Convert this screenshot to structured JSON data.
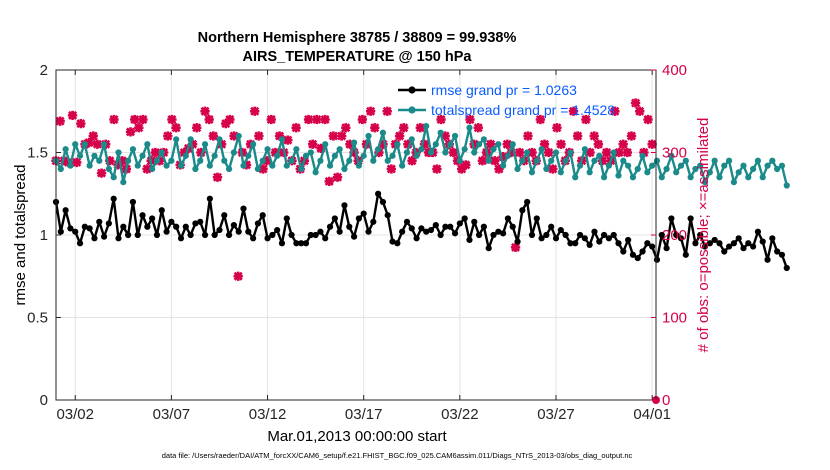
{
  "chart_data": {
    "type": "line",
    "title": "Northern Hemisphere 38785 / 38809 = 99.938%",
    "subtitle": "AIRS_TEMPERATURE @ 150 hPa",
    "xlabel": "Mar.01,2013 00:00:00 start",
    "ylabel": "rmse and totalspread",
    "ylabel_right": "# of obs: o=possible; ×=assimilated",
    "xlim": [
      0,
      31.2
    ],
    "ylim": [
      0,
      2
    ],
    "ylim_right": [
      0,
      400
    ],
    "x_tick_values": [
      1,
      6,
      11,
      16,
      21,
      26,
      31
    ],
    "x_tick_labels": [
      "03/02",
      "03/07",
      "03/12",
      "03/17",
      "03/22",
      "03/27",
      "04/01"
    ],
    "y_tick_labels": [
      "0",
      "0.5",
      "1",
      "1.5",
      "2"
    ],
    "y_right_tick_labels": [
      "0",
      "100",
      "200",
      "300",
      "400"
    ],
    "grid": true,
    "legend_position": "top-right",
    "x_step": 0.25,
    "series": [
      {
        "name": "rmse grand pr = 1.0263",
        "color": "#000000",
        "axis": "left",
        "marker": "dot",
        "values": [
          1.2,
          1.02,
          1.15,
          1.04,
          1.02,
          0.95,
          1.05,
          1.04,
          0.98,
          1.08,
          0.99,
          1.07,
          1.22,
          0.98,
          1.05,
          1.0,
          1.2,
          1.0,
          1.12,
          1.05,
          1.1,
          1.0,
          1.15,
          1.02,
          1.08,
          1.05,
          0.98,
          1.05,
          1.0,
          1.07,
          1.08,
          1.0,
          1.22,
          1.0,
          1.03,
          1.12,
          1.0,
          1.06,
          1.02,
          1.16,
          1.02,
          0.98,
          1.07,
          1.12,
          0.98,
          1.0,
          1.03,
          0.95,
          1.1,
          1.0,
          0.95,
          0.95,
          0.95,
          1.0,
          1.0,
          1.02,
          0.98,
          1.05,
          1.1,
          1.02,
          1.18,
          1.05,
          0.99,
          1.1,
          1.13,
          1.02,
          1.08,
          1.25,
          1.2,
          1.12,
          0.96,
          0.95,
          1.02,
          1.08,
          1.04,
          0.98,
          1.04,
          1.02,
          1.03,
          1.06,
          1.0,
          1.05,
          1.05,
          1.01,
          1.07,
          1.1,
          0.97,
          1.08,
          1.0,
          1.05,
          0.92,
          1.0,
          1.02,
          1.01,
          1.1,
          1.05,
          0.96,
          1.15,
          1.2,
          1.0,
          1.1,
          0.98,
          1.0,
          1.05,
          0.98,
          1.03,
          1.0,
          0.95,
          0.95,
          1.0,
          0.98,
          0.94,
          1.02,
          0.96,
          1.0,
          0.98,
          1.0,
          0.95,
          0.9,
          0.97,
          0.88,
          0.86,
          0.9,
          0.95,
          0.93,
          0.85,
          1.0,
          0.92,
          1.1,
          1.0,
          0.98,
          0.88,
          1.1,
          0.95,
          1.0,
          0.93,
          0.95,
          0.97,
          0.95,
          0.9,
          0.93,
          0.95,
          0.98,
          0.92,
          0.95,
          0.93,
          1.02,
          0.96,
          0.85,
          0.98,
          0.9,
          0.88,
          0.8
        ]
      },
      {
        "name": "totalspread grand pr = 1.4528",
        "color": "#1a8a8a",
        "axis": "left",
        "marker": "dot",
        "values": [
          1.45,
          1.4,
          1.52,
          1.42,
          1.55,
          1.48,
          1.55,
          1.42,
          1.48,
          1.45,
          1.55,
          1.4,
          1.35,
          1.5,
          1.32,
          1.45,
          1.52,
          1.42,
          1.48,
          1.55,
          1.4,
          1.45,
          1.5,
          1.42,
          1.45,
          1.58,
          1.42,
          1.48,
          1.58,
          1.4,
          1.45,
          1.55,
          1.42,
          1.48,
          1.58,
          1.45,
          1.4,
          1.5,
          1.6,
          1.42,
          1.48,
          1.55,
          1.4,
          1.45,
          1.52,
          1.42,
          1.48,
          1.58,
          1.42,
          1.45,
          1.52,
          1.4,
          1.48,
          1.5,
          1.38,
          1.45,
          1.55,
          1.42,
          1.48,
          1.52,
          1.4,
          1.45,
          1.56,
          1.42,
          1.48,
          1.6,
          1.45,
          1.52,
          1.62,
          1.45,
          1.48,
          1.55,
          1.42,
          1.5,
          1.58,
          1.48,
          1.52,
          1.66,
          1.5,
          1.55,
          1.62,
          1.5,
          1.55,
          1.6,
          1.45,
          1.52,
          1.65,
          1.5,
          1.55,
          1.58,
          1.45,
          1.52,
          1.55,
          1.42,
          1.48,
          1.55,
          1.4,
          1.45,
          1.5,
          1.38,
          1.45,
          1.52,
          1.4,
          1.45,
          1.5,
          1.38,
          1.45,
          1.5,
          1.35,
          1.42,
          1.52,
          1.38,
          1.45,
          1.48,
          1.35,
          1.42,
          1.5,
          1.36,
          1.45,
          1.42,
          1.35,
          1.4,
          1.48,
          1.38,
          1.42,
          1.45,
          1.35,
          1.4,
          1.48,
          1.38,
          1.42,
          1.45,
          1.35,
          1.4,
          1.42,
          1.32,
          1.38,
          1.45,
          1.35,
          1.42,
          1.45,
          1.32,
          1.38,
          1.42,
          1.35,
          1.4,
          1.45,
          1.35,
          1.42,
          1.45,
          1.4,
          1.42,
          1.3
        ]
      },
      {
        "name": "",
        "color": "#d6004b",
        "axis": "right",
        "marker": "x",
        "values": [
          290,
          338,
          290,
          288,
          345,
          288,
          335,
          310,
          312,
          320,
          310,
          275,
          310,
          290,
          340,
          285,
          290,
          280,
          325,
          340,
          330,
          340,
          280,
          290,
          300,
          290,
          300,
          320,
          340,
          330,
          285,
          300,
          305,
          310,
          330,
          300,
          350,
          340,
          320,
          270,
          310,
          335,
          340,
          320,
          150,
          300,
          285,
          310,
          350,
          320,
          280,
          290,
          340,
          300,
          320,
          300,
          315,
          290,
          330,
          280,
          290,
          340,
          310,
          340,
          305,
          340,
          265,
          320,
          270,
          320,
          330,
          310,
          300,
          290,
          340,
          310,
          350,
          330,
          300,
          310,
          350,
          280,
          310,
          320,
          330,
          310,
          290,
          300,
          330,
          310,
          300,
          300,
          280,
          340,
          320,
          310,
          300,
          290,
          280,
          285,
          340,
          310,
          330,
          290,
          300,
          310,
          290,
          280,
          295,
          310,
          300,
          185,
          300,
          290,
          320,
          300,
          290,
          340,
          310,
          300,
          280,
          330,
          310,
          290,
          300,
          350,
          320,
          290,
          340,
          300,
          320,
          310,
          290,
          300,
          290,
          350,
          300,
          310,
          300,
          320,
          360,
          350,
          300,
          340,
          310
        ]
      }
    ]
  },
  "footnote": "data file: /Users/raeder/DAI/ATM_forcXX/CAM6_setup/f.e21.FHIST_BGC.f09_025.CAM6assim.011/Diags_NTrS_2013-03/obs_diag_output.nc",
  "end_marker_right": "o"
}
